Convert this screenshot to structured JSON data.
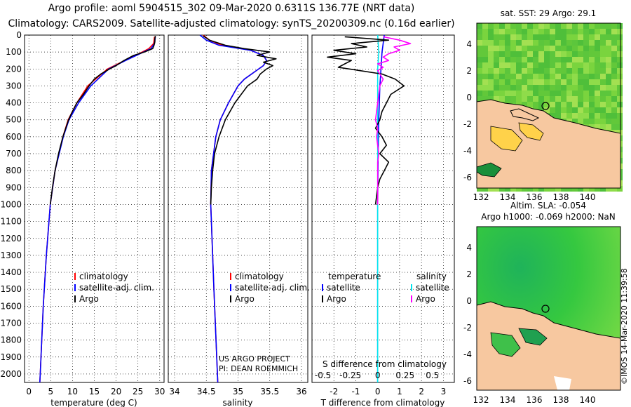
{
  "header": {
    "title_line1": "Argo profile: aoml 5904515_302 09-Mar-2020 0.6311S 136.77E (NRT data)",
    "title_line2": "Climatology: CARS2009. Satellite-adjusted climatology: synTS_20200309.nc (0.16d earlier)"
  },
  "depth_axis": {
    "ticks": [
      0,
      100,
      200,
      300,
      400,
      500,
      600,
      700,
      800,
      900,
      1000,
      1100,
      1200,
      1300,
      1400,
      1500,
      1600,
      1700,
      1800,
      1900,
      2000
    ],
    "range": [
      0,
      2050
    ]
  },
  "colors": {
    "climatology": "#ff0000",
    "satellite": "#0000ff",
    "argo": "#000000",
    "satellite_salinity": "#00e5ee",
    "argo_salinity": "#ff00ff",
    "land": "#f7c8a0"
  },
  "chart_data": [
    {
      "id": "temperature",
      "type": "line",
      "xlabel": "temperature (deg C)",
      "xlim": [
        -1,
        31
      ],
      "xticks": [
        0,
        5,
        10,
        15,
        20,
        25,
        30
      ],
      "ylim": [
        0,
        2050
      ],
      "legend": [
        "climatology",
        "satellite-adj. clim.",
        "Argo"
      ],
      "series": [
        {
          "name": "climatology",
          "depth": [
            10,
            50,
            80,
            100,
            150,
            200,
            300,
            400,
            500,
            600,
            800,
            1000,
            1300,
            1600,
            2000,
            2050
          ],
          "values": [
            28.8,
            28.6,
            27.5,
            26.0,
            22.0,
            18.0,
            13.5,
            11.0,
            9.0,
            7.8,
            6.0,
            4.9,
            4.0,
            3.3,
            2.6,
            2.5
          ]
        },
        {
          "name": "satellite-adj. clim.",
          "depth": [
            10,
            50,
            80,
            100,
            150,
            200,
            300,
            400,
            500,
            600,
            800,
            1000,
            1300,
            1600,
            2000,
            2050
          ],
          "values": [
            29.0,
            28.8,
            28.0,
            26.3,
            22.2,
            18.3,
            14.2,
            11.4,
            9.2,
            7.9,
            6.0,
            4.9,
            4.0,
            3.3,
            2.6,
            2.5
          ]
        },
        {
          "name": "Argo",
          "depth": [
            5,
            20,
            40,
            60,
            80,
            100,
            120,
            150,
            180,
            200,
            230,
            260,
            300,
            350,
            400,
            450,
            500,
            600,
            700,
            800,
            900,
            1000
          ],
          "values": [
            29.0,
            28.9,
            28.9,
            28.7,
            28.4,
            26.5,
            24.0,
            21.8,
            20.0,
            18.5,
            16.5,
            15.0,
            13.8,
            12.5,
            11.0,
            10.0,
            9.1,
            7.8,
            6.8,
            6.0,
            5.4,
            4.9
          ]
        }
      ]
    },
    {
      "id": "salinity",
      "type": "line",
      "xlabel": "salinity",
      "xlim": [
        33.9,
        36.1
      ],
      "xticks": [
        34,
        34.5,
        35,
        35.5,
        36
      ],
      "ylim": [
        0,
        2050
      ],
      "legend": [
        "climatology",
        "satellite-adj. clim.",
        "Argo"
      ],
      "note_line1": "US ARGO PROJECT",
      "note_line2": "PI: DEAN ROEMMICH",
      "series": [
        {
          "name": "climatology",
          "depth": [
            0,
            30,
            60,
            90,
            120,
            150,
            180,
            220,
            260,
            300,
            400,
            500,
            600,
            800,
            1000,
            1500,
            2050
          ],
          "values": [
            34.45,
            34.55,
            34.75,
            35.2,
            35.4,
            35.45,
            35.4,
            35.25,
            35.1,
            35.0,
            34.85,
            34.72,
            34.65,
            34.58,
            34.57,
            34.62,
            34.68
          ]
        },
        {
          "name": "satellite-adj. clim.",
          "depth": [
            0,
            30,
            60,
            90,
            120,
            150,
            180,
            220,
            260,
            300,
            400,
            500,
            600,
            800,
            1000,
            1500,
            2050
          ],
          "values": [
            34.4,
            34.5,
            34.7,
            35.2,
            35.4,
            35.45,
            35.4,
            35.25,
            35.1,
            35.0,
            34.85,
            34.72,
            34.65,
            34.58,
            34.57,
            34.62,
            34.68
          ]
        },
        {
          "name": "Argo",
          "depth": [
            5,
            30,
            60,
            80,
            100,
            120,
            140,
            160,
            180,
            200,
            230,
            260,
            300,
            350,
            400,
            500,
            600,
            700,
            800,
            900,
            1000
          ],
          "values": [
            34.45,
            34.55,
            34.8,
            35.1,
            35.5,
            35.3,
            35.6,
            35.4,
            35.55,
            35.45,
            35.35,
            35.3,
            35.15,
            35.05,
            34.95,
            34.8,
            34.7,
            34.63,
            34.6,
            34.58,
            34.57
          ]
        }
      ]
    },
    {
      "id": "difference",
      "type": "line",
      "xlabel": "T difference from climatology",
      "xlim": [
        -3,
        3.5
      ],
      "xticks": [
        -2,
        -1,
        0,
        1,
        2,
        3
      ],
      "xlabel2": "S difference from climatology",
      "xticks2_values": [
        -0.5,
        -0.25,
        0,
        0.25,
        0.5
      ],
      "xticks2_labels": [
        "-0.5",
        "-0.25",
        "0",
        "0.25",
        "0.5"
      ],
      "ylim": [
        0,
        2050
      ],
      "legend_title_t": "temperature",
      "legend_title_s": "salinity",
      "legend_t": [
        "satellite",
        "Argo"
      ],
      "legend_s": [
        "satellite",
        "Argo"
      ],
      "series": [
        {
          "name": "T satellite",
          "depth": [
            0,
            100,
            200,
            300,
            500,
            700,
            1000,
            2050
          ],
          "values": [
            0.3,
            0.2,
            0.15,
            0.1,
            0.05,
            0.02,
            0.0,
            0.0
          ]
        },
        {
          "name": "S satellite",
          "depth": [
            0,
            100,
            200,
            300,
            500,
            700,
            1000,
            2050
          ],
          "values": [
            0.0,
            0.01,
            0.0,
            0.0,
            0.0,
            0.0,
            0.0,
            0.0
          ]
        },
        {
          "name": "T Argo",
          "depth": [
            10,
            30,
            50,
            70,
            90,
            110,
            130,
            150,
            170,
            190,
            210,
            230,
            260,
            300,
            350,
            400,
            450,
            500,
            550,
            600,
            650,
            700,
            750,
            800,
            850,
            900,
            950,
            1000
          ],
          "values": [
            -1.5,
            0.5,
            -1.2,
            -0.5,
            -2.0,
            -1.0,
            -2.3,
            -1.2,
            -1.5,
            -1.8,
            -0.8,
            0.2,
            0.8,
            1.2,
            0.6,
            0.4,
            0.2,
            0.1,
            -0.1,
            0.2,
            0.4,
            0.1,
            0.5,
            0.3,
            0.1,
            0.0,
            -0.05,
            -0.1
          ]
        },
        {
          "name": "S Argo",
          "depth": [
            10,
            30,
            50,
            70,
            90,
            110,
            130,
            150,
            170,
            190,
            210,
            230,
            260,
            300,
            350,
            400,
            450,
            500,
            550,
            600,
            650,
            700,
            750,
            800,
            900,
            1000
          ],
          "values": [
            0.05,
            0.2,
            0.3,
            0.15,
            0.2,
            0.1,
            0.05,
            0.1,
            0.0,
            0.05,
            0.0,
            0.02,
            0.05,
            0.02,
            0.01,
            0.0,
            -0.01,
            -0.02,
            0.0,
            -0.01,
            0.0,
            0.01,
            0.0,
            0.0,
            0.0,
            0.0
          ]
        }
      ]
    }
  ],
  "maps": {
    "sst": {
      "title": "sat. SST: 29 Argo: 29.1",
      "yticks": [
        "4",
        "2",
        "0",
        "-2",
        "-4",
        "-6"
      ],
      "xticks": [
        "132",
        "134",
        "136",
        "138",
        "140"
      ]
    },
    "altimetry": {
      "title_line1": "Altim. SLA: -0.054",
      "title_line2": "Argo h1000: -0.069 h2000: NaN",
      "yticks": [
        "4",
        "2",
        "0",
        "-2",
        "-4",
        "-6"
      ],
      "xticks": [
        "132",
        "134",
        "136",
        "138",
        "140"
      ]
    }
  },
  "footer": {
    "credit": "©IMOS 14-Mar-2020 11:39:58"
  }
}
